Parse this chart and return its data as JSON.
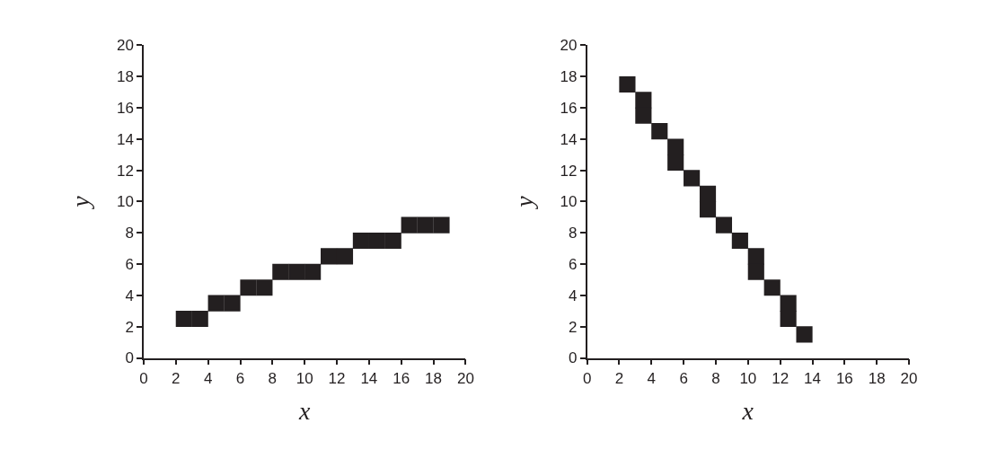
{
  "chart_data": [
    {
      "type": "scatter",
      "xlabel": "x",
      "ylabel": "y",
      "xlim": [
        0,
        20
      ],
      "ylim": [
        0,
        20
      ],
      "xticks": [
        0,
        2,
        4,
        6,
        8,
        10,
        12,
        14,
        16,
        18,
        20
      ],
      "yticks": [
        0,
        2,
        4,
        6,
        8,
        10,
        12,
        14,
        16,
        18,
        20
      ],
      "marker": "square",
      "x": [
        2.5,
        3.5,
        4.5,
        5.5,
        6.5,
        7.5,
        8.5,
        9.5,
        10.5,
        11.5,
        12.5,
        13.5,
        14.5,
        15.5,
        16.5,
        17.5,
        18.5
      ],
      "series": [
        {
          "color": "#231f20",
          "values": [
            2.5,
            2.5,
            3.5,
            3.5,
            4.5,
            4.5,
            5.5,
            5.5,
            5.5,
            6.5,
            6.5,
            7.5,
            7.5,
            7.5,
            8.5,
            8.5,
            8.5
          ]
        }
      ]
    },
    {
      "type": "scatter",
      "xlabel": "x",
      "ylabel": "y",
      "xlim": [
        0,
        20
      ],
      "ylim": [
        0,
        20
      ],
      "xticks": [
        0,
        2,
        4,
        6,
        8,
        10,
        12,
        14,
        16,
        18,
        20
      ],
      "yticks": [
        0,
        2,
        4,
        6,
        8,
        10,
        12,
        14,
        16,
        18,
        20
      ],
      "marker": "square",
      "x": [
        2.5,
        3.5,
        3.5,
        4.5,
        5.5,
        5.5,
        6.5,
        7.5,
        7.5,
        8.5,
        9.5,
        10.5,
        10.5,
        11.5,
        12.5,
        12.5,
        13.5
      ],
      "series": [
        {
          "color": "#231f20",
          "values": [
            17.5,
            16.5,
            15.5,
            14.5,
            13.5,
            12.5,
            11.5,
            10.5,
            9.5,
            8.5,
            7.5,
            6.5,
            5.5,
            4.5,
            3.5,
            2.5,
            1.5
          ]
        }
      ]
    }
  ]
}
